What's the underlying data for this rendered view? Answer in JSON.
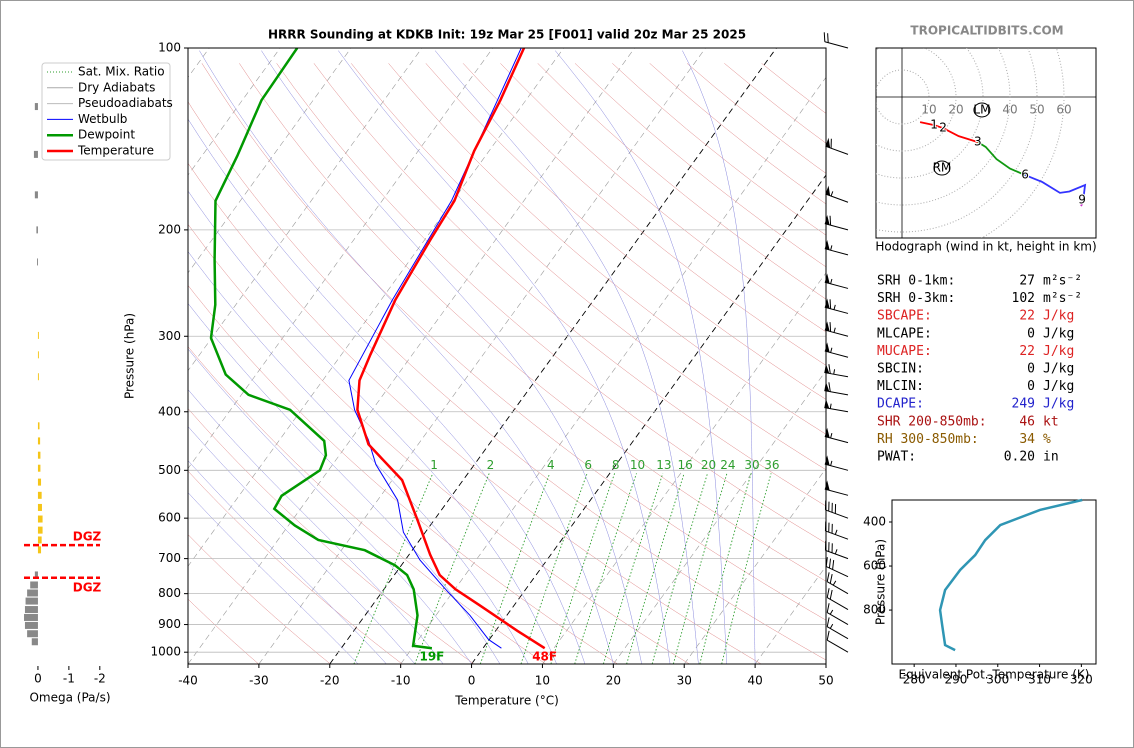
{
  "brand": "TROPICALTIDBITS.COM",
  "chart_data": [
    {
      "type": "skewt",
      "title": "HRRR Sounding at KDKB Init: 19z Mar 25 [F001] valid 20z Mar 25 2025",
      "xlabel": "Temperature (°C)",
      "ylabel": "Pressure (hPa)",
      "xlim": [
        -40,
        50
      ],
      "ylim": [
        1046,
        100
      ],
      "xticks": [
        -40,
        -30,
        -20,
        -10,
        0,
        10,
        20,
        30,
        40,
        50
      ],
      "yticks": [
        100,
        200,
        300,
        400,
        500,
        600,
        700,
        800,
        900,
        1000
      ],
      "log_y": true,
      "grid": true,
      "reference_lines": [
        {
          "name": "Sat. Mix. Ratio",
          "color": "#2e9e2e",
          "style": "dotted"
        },
        {
          "name": "Dry Adiabats",
          "color": "#aaaaaa",
          "style": "solid"
        },
        {
          "name": "Pseudoadiabats",
          "color": "#bbbbbb",
          "style": "solid"
        }
      ],
      "mixing_ratios": [
        1,
        2,
        4,
        6,
        8,
        10,
        13,
        16,
        20,
        24,
        30,
        36
      ],
      "series": [
        {
          "name": "Wetbulb",
          "color": "#0000ff",
          "pressure": [
            985,
            953,
            869,
            787,
            704,
            633,
            560,
            489,
            445,
            397,
            355,
            261,
            179,
            122,
            100
          ],
          "values": [
            2.6,
            -0.1,
            -5.2,
            -11.3,
            -17.9,
            -23.1,
            -27.2,
            -33.9,
            -37.5,
            -42.5,
            -46.3,
            -48.4,
            -50.2,
            -54,
            -56
          ]
        },
        {
          "name": "Dewpoint",
          "color": "#009900",
          "surface_label": "19F",
          "pressure": [
            985,
            976,
            869,
            787,
            745,
            718,
            678,
            652,
            617,
            579,
            551,
            500,
            472,
            447,
            397,
            375,
            347,
            302,
            266,
            224,
            179,
            151,
            122,
            100
          ],
          "values": [
            -7.2,
            -10.1,
            -12.6,
            -15.8,
            -18.2,
            -20.9,
            -26.7,
            -34.3,
            -39.1,
            -43.7,
            -44,
            -41.2,
            -41.9,
            -43.6,
            -51.6,
            -59,
            -64.3,
            -70.1,
            -72.9,
            -77.6,
            -83.5,
            -85,
            -87.3,
            -87.6
          ]
        },
        {
          "name": "Temperature",
          "color": "#ff0000",
          "surface_label": "48F",
          "pressure": [
            985,
            922,
            836,
            787,
            745,
            690,
            605,
            519,
            453,
            397,
            355,
            322,
            261,
            208,
            179,
            148,
            122,
            100
          ],
          "values": [
            8.7,
            3.1,
            -4.9,
            -9.9,
            -13.6,
            -17,
            -22.3,
            -28.6,
            -37,
            -42.1,
            -44.8,
            -45.9,
            -48,
            -49.2,
            -49.8,
            -52.1,
            -53.6,
            -55.6
          ]
        }
      ],
      "wind_barbs": {
        "pressure": [
          100,
          150,
          180,
          200,
          220,
          250,
          275,
          300,
          325,
          350,
          375,
          400,
          450,
          500,
          550,
          600,
          650,
          700,
          750,
          800,
          850,
          900,
          950,
          1000
        ],
        "speed": [
          20,
          60,
          55,
          60,
          55,
          55,
          65,
          65,
          55,
          65,
          60,
          55,
          55,
          55,
          50,
          40,
          35,
          35,
          30,
          25,
          20,
          15,
          15,
          10
        ],
        "direction": [
          285,
          290,
          290,
          285,
          285,
          285,
          285,
          285,
          285,
          280,
          280,
          280,
          285,
          285,
          285,
          290,
          290,
          290,
          295,
          300,
          300,
          300,
          300,
          300
        ]
      }
    },
    {
      "type": "hodograph",
      "xlabel": "Hodograph (wind in kt, height in km)",
      "rings": [
        10,
        20,
        30,
        40,
        50,
        60
      ],
      "series": [
        {
          "color": "#ff0000",
          "u": [
            6.7,
            11.9,
            15.2,
            21,
            28.1
          ],
          "v": [
            -9.3,
            -10.4,
            -11.5,
            -14.5,
            -16.7
          ]
        },
        {
          "color": "#119911",
          "u": [
            28.1,
            31,
            35,
            40,
            45.6
          ],
          "v": [
            -16.7,
            -18.5,
            -23,
            -26.5,
            -28.9
          ]
        },
        {
          "color": "#3333ff",
          "u": [
            45.6,
            52,
            58.5,
            62,
            67.8,
            67
          ],
          "v": [
            -28.9,
            -31.5,
            -35.5,
            -35,
            -32.6,
            -39
          ]
        },
        {
          "color": "#cc33cc",
          "u": [
            67,
            66.3
          ],
          "v": [
            -39,
            -40.4
          ]
        }
      ],
      "heights": {
        "values": [
          1,
          2,
          3,
          6,
          9
        ],
        "u": [
          11.9,
          15.2,
          28.1,
          45.6,
          66.7
        ],
        "v": [
          -10.4,
          -11.5,
          -16.7,
          -28.9,
          -38.1
        ]
      },
      "storm_motions": [
        {
          "label": "LM",
          "u": 29.6,
          "v": -4.8
        },
        {
          "label": "RM",
          "u": 14.8,
          "v": -26.3
        }
      ]
    },
    {
      "type": "table",
      "rows": [
        {
          "label": "SRH 0-1km:",
          "value": "27",
          "unit": "m²s⁻²",
          "color": "#000000"
        },
        {
          "label": "SRH 0-3km:",
          "value": "102",
          "unit": "m²s⁻²",
          "color": "#000000"
        },
        {
          "label": "SBCAPE:",
          "value": "22",
          "unit": "J/kg",
          "color": "#dd2222"
        },
        {
          "label": "MLCAPE:",
          "value": "0",
          "unit": "J/kg",
          "color": "#000000"
        },
        {
          "label": "MUCAPE:",
          "value": "22",
          "unit": "J/kg",
          "color": "#dd2222"
        },
        {
          "label": "SBCIN:",
          "value": "0",
          "unit": "J/kg",
          "color": "#000000"
        },
        {
          "label": "MLCIN:",
          "value": "0",
          "unit": "J/kg",
          "color": "#000000"
        },
        {
          "label": "DCAPE:",
          "value": "249",
          "unit": "J/kg",
          "color": "#2222cc"
        },
        {
          "label": "SHR 200-850mb:",
          "value": "46",
          "unit": "kt",
          "color": "#aa1111"
        },
        {
          "label": "RH 300-850mb:",
          "value": "34",
          "unit": "%",
          "color": "#8a5a00"
        },
        {
          "label": "PWAT:",
          "value": "0.20",
          "unit": "in",
          "color": "#000000"
        }
      ]
    },
    {
      "type": "line",
      "xlabel": "Equivalent Pot. Temperature (K)",
      "ylabel": "Pressure (hPa)",
      "color": "#2f96b4",
      "xlim": [
        274.7,
        323.5
      ],
      "ylim": [
        1045,
        300
      ],
      "xticks": [
        280,
        290,
        300,
        310,
        320
      ],
      "yticks": [
        400,
        600,
        800
      ],
      "pressure": [
        300,
        345,
        414,
        482,
        550,
        618,
        709,
        800,
        868,
        959,
        982
      ],
      "values": [
        320.2,
        310.1,
        300.6,
        297,
        294.6,
        291,
        287.4,
        286.2,
        286.7,
        287.4,
        289.8
      ]
    },
    {
      "type": "bar",
      "xlabel": "Omega (Pa/s)",
      "xlim": [
        0.58,
        -2.2
      ],
      "xticks": [
        0,
        -1,
        -2
      ],
      "ylim": [
        1046,
        100
      ],
      "log_y": true,
      "colors": {
        "positive": "#888888",
        "negative": "#f5c518"
      },
      "pressure": [
        125,
        150,
        175,
        200,
        226,
        299,
        322,
        350,
        422,
        447,
        472,
        496,
        523,
        550,
        576,
        602,
        628,
        652,
        677,
        745,
        774,
        798,
        823,
        850,
        876,
        903,
        932,
        961
      ],
      "values": [
        0.1,
        0.13,
        0.1,
        0.05,
        0.03,
        -0.03,
        -0.03,
        -0.03,
        -0.05,
        -0.07,
        -0.08,
        -0.08,
        -0.1,
        -0.12,
        -0.13,
        -0.15,
        -0.15,
        -0.12,
        -0.1,
        0.1,
        0.25,
        0.35,
        0.4,
        0.42,
        0.45,
        0.42,
        0.35,
        0.2
      ],
      "dgz": {
        "pressure": [
          665,
          753
        ],
        "label": "DGZ",
        "color": "#ff0000"
      }
    }
  ]
}
